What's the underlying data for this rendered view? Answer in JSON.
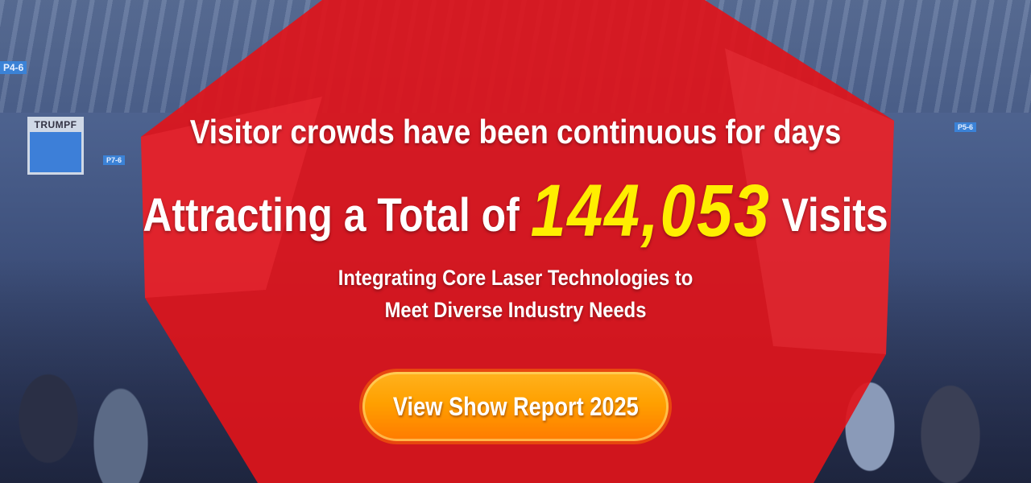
{
  "background": {
    "signs": [
      "P4-6",
      "P7-6",
      "P5-6"
    ],
    "logo_text": "TRUMPF"
  },
  "headline": {
    "line1": "Visitor crowds have been continuous for days",
    "line2_prefix": "Attracting a Total of ",
    "visits_count": "144,053",
    "line2_suffix": " Visits"
  },
  "subheadline": {
    "line1": "Integrating Core Laser Technologies to",
    "line2": "Meet Diverse Industry Needs"
  },
  "cta": {
    "label": "View Show Report 2025"
  },
  "colors": {
    "red_shape": "#e0141a",
    "number": "#ffee00",
    "button": "#ffa000"
  }
}
